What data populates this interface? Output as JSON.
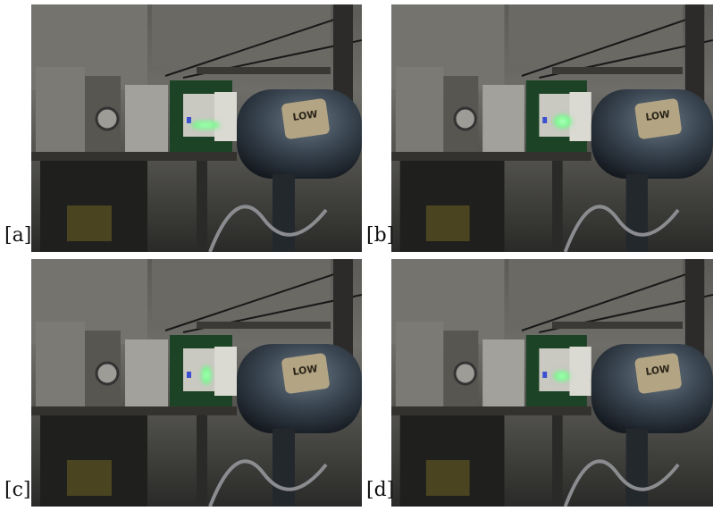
{
  "panels": [
    {
      "label": "[a]",
      "sign": "LOW"
    },
    {
      "label": "[b]",
      "sign": "LOW"
    },
    {
      "label": "[c]",
      "sign": "LOW"
    },
    {
      "label": "[d]",
      "sign": "LOW"
    }
  ]
}
